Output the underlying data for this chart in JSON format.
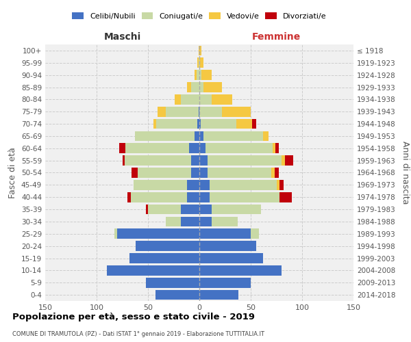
{
  "age_groups": [
    "0-4",
    "5-9",
    "10-14",
    "15-19",
    "20-24",
    "25-29",
    "30-34",
    "35-39",
    "40-44",
    "45-49",
    "50-54",
    "55-59",
    "60-64",
    "65-69",
    "70-74",
    "75-79",
    "80-84",
    "85-89",
    "90-94",
    "95-99",
    "100+"
  ],
  "birth_years": [
    "2014-2018",
    "2009-2013",
    "2004-2008",
    "1999-2003",
    "1994-1998",
    "1989-1993",
    "1984-1988",
    "1979-1983",
    "1974-1978",
    "1969-1973",
    "1964-1968",
    "1959-1963",
    "1954-1958",
    "1949-1953",
    "1944-1948",
    "1939-1943",
    "1934-1938",
    "1929-1933",
    "1924-1928",
    "1919-1923",
    "≤ 1918"
  ],
  "male": {
    "celibi": [
      43,
      52,
      90,
      68,
      62,
      80,
      18,
      18,
      12,
      12,
      8,
      8,
      10,
      5,
      2,
      1,
      0,
      0,
      0,
      0,
      0
    ],
    "coniugati": [
      0,
      0,
      0,
      0,
      0,
      3,
      15,
      32,
      55,
      52,
      52,
      65,
      62,
      58,
      40,
      32,
      18,
      8,
      3,
      1,
      0
    ],
    "vedovi": [
      0,
      0,
      0,
      0,
      0,
      0,
      0,
      0,
      0,
      0,
      0,
      0,
      0,
      0,
      3,
      8,
      6,
      4,
      2,
      1,
      1
    ],
    "divorziati": [
      0,
      0,
      0,
      0,
      0,
      0,
      0,
      2,
      3,
      0,
      6,
      2,
      6,
      0,
      0,
      0,
      0,
      0,
      0,
      0,
      0
    ]
  },
  "female": {
    "nubili": [
      38,
      50,
      80,
      62,
      55,
      50,
      12,
      12,
      10,
      10,
      8,
      8,
      6,
      4,
      1,
      0,
      0,
      0,
      0,
      0,
      0
    ],
    "coniugate": [
      0,
      0,
      0,
      0,
      0,
      8,
      25,
      48,
      68,
      65,
      62,
      72,
      65,
      58,
      35,
      22,
      12,
      4,
      2,
      0,
      0
    ],
    "vedove": [
      0,
      0,
      0,
      0,
      0,
      0,
      0,
      0,
      0,
      3,
      3,
      3,
      3,
      5,
      15,
      28,
      20,
      18,
      10,
      4,
      2
    ],
    "divorziate": [
      0,
      0,
      0,
      0,
      0,
      0,
      0,
      0,
      12,
      4,
      4,
      8,
      3,
      0,
      4,
      0,
      0,
      0,
      0,
      0,
      0
    ]
  },
  "colors": {
    "celibi": "#4472c4",
    "coniugati": "#c8d9a5",
    "vedovi": "#f5c842",
    "divorziati": "#c0000b"
  },
  "xlim": 150,
  "title": "Popolazione per età, sesso e stato civile - 2019",
  "subtitle": "COMUNE DI TRAMUTOLA (PZ) - Dati ISTAT 1° gennaio 2019 - Elaborazione TUTTITALIA.IT",
  "ylabel_left": "Fasce di età",
  "ylabel_right": "Anni di nascita",
  "xlabel_left": "Maschi",
  "xlabel_right": "Femmine",
  "background_color": "#f0f0f0"
}
